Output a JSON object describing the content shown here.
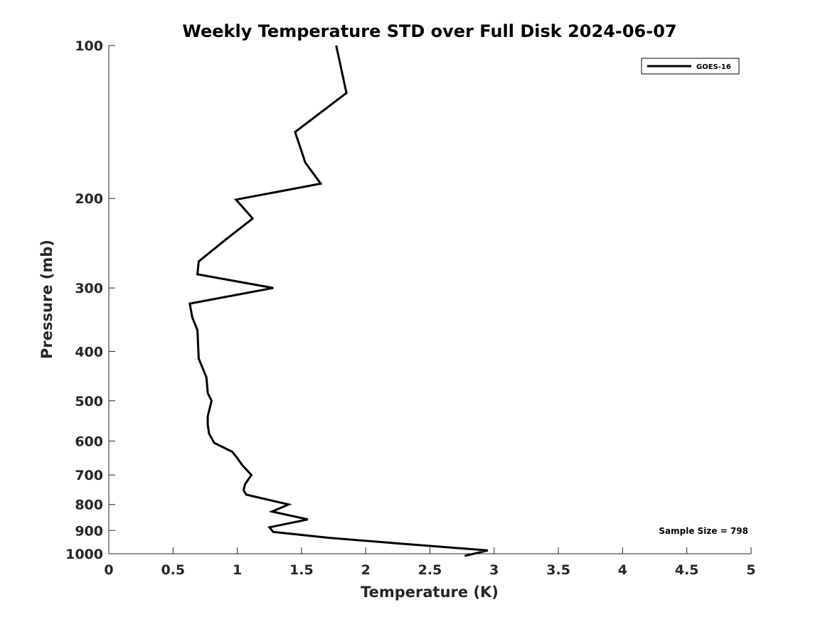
{
  "chart_data": {
    "type": "line",
    "title": "Weekly Temperature STD over Full Disk 2024-06-07",
    "xlabel": "Temperature (K)",
    "ylabel": "Pressure (mb)",
    "xlim": [
      0,
      5
    ],
    "ylim": [
      100,
      1000
    ],
    "y_scale": "log",
    "y_inverted": true,
    "grid": false,
    "x_ticks": [
      0,
      0.5,
      1,
      1.5,
      2,
      2.5,
      3,
      3.5,
      4,
      4.5,
      5
    ],
    "x_tick_labels": [
      "0",
      "0.5",
      "1",
      "1.5",
      "2",
      "2.5",
      "3",
      "3.5",
      "4",
      "4.5",
      "5"
    ],
    "y_ticks": [
      100,
      200,
      300,
      400,
      500,
      600,
      700,
      800,
      900,
      1000
    ],
    "y_tick_labels": [
      "100",
      "200",
      "300",
      "400",
      "500",
      "600",
      "700",
      "800",
      "900",
      "1000"
    ],
    "legend_position": "top-right",
    "series": [
      {
        "name": "GOES-16",
        "color": "#000000",
        "x": [
          1.77,
          1.85,
          1.45,
          1.53,
          1.65,
          0.99,
          1.12,
          0.91,
          0.7,
          0.69,
          1.28,
          0.63,
          0.65,
          0.69,
          0.7,
          0.76,
          0.77,
          0.8,
          0.77,
          0.77,
          0.78,
          0.82,
          0.96,
          0.99,
          1.04,
          1.11,
          1.06,
          1.05,
          1.07,
          1.4,
          1.27,
          1.55,
          1.25,
          1.28,
          1.71,
          2.27,
          2.95,
          2.77
        ],
        "y": [
          100,
          124,
          148,
          170,
          187,
          201,
          219,
          241,
          266,
          282,
          300,
          322,
          343,
          363,
          413,
          450,
          483,
          500,
          536,
          557,
          580,
          605,
          630,
          643,
          670,
          700,
          730,
          750,
          765,
          800,
          826,
          856,
          887,
          906,
          930,
          955,
          985,
          1010
        ]
      }
    ],
    "annotation": "Sample Size = 798"
  }
}
